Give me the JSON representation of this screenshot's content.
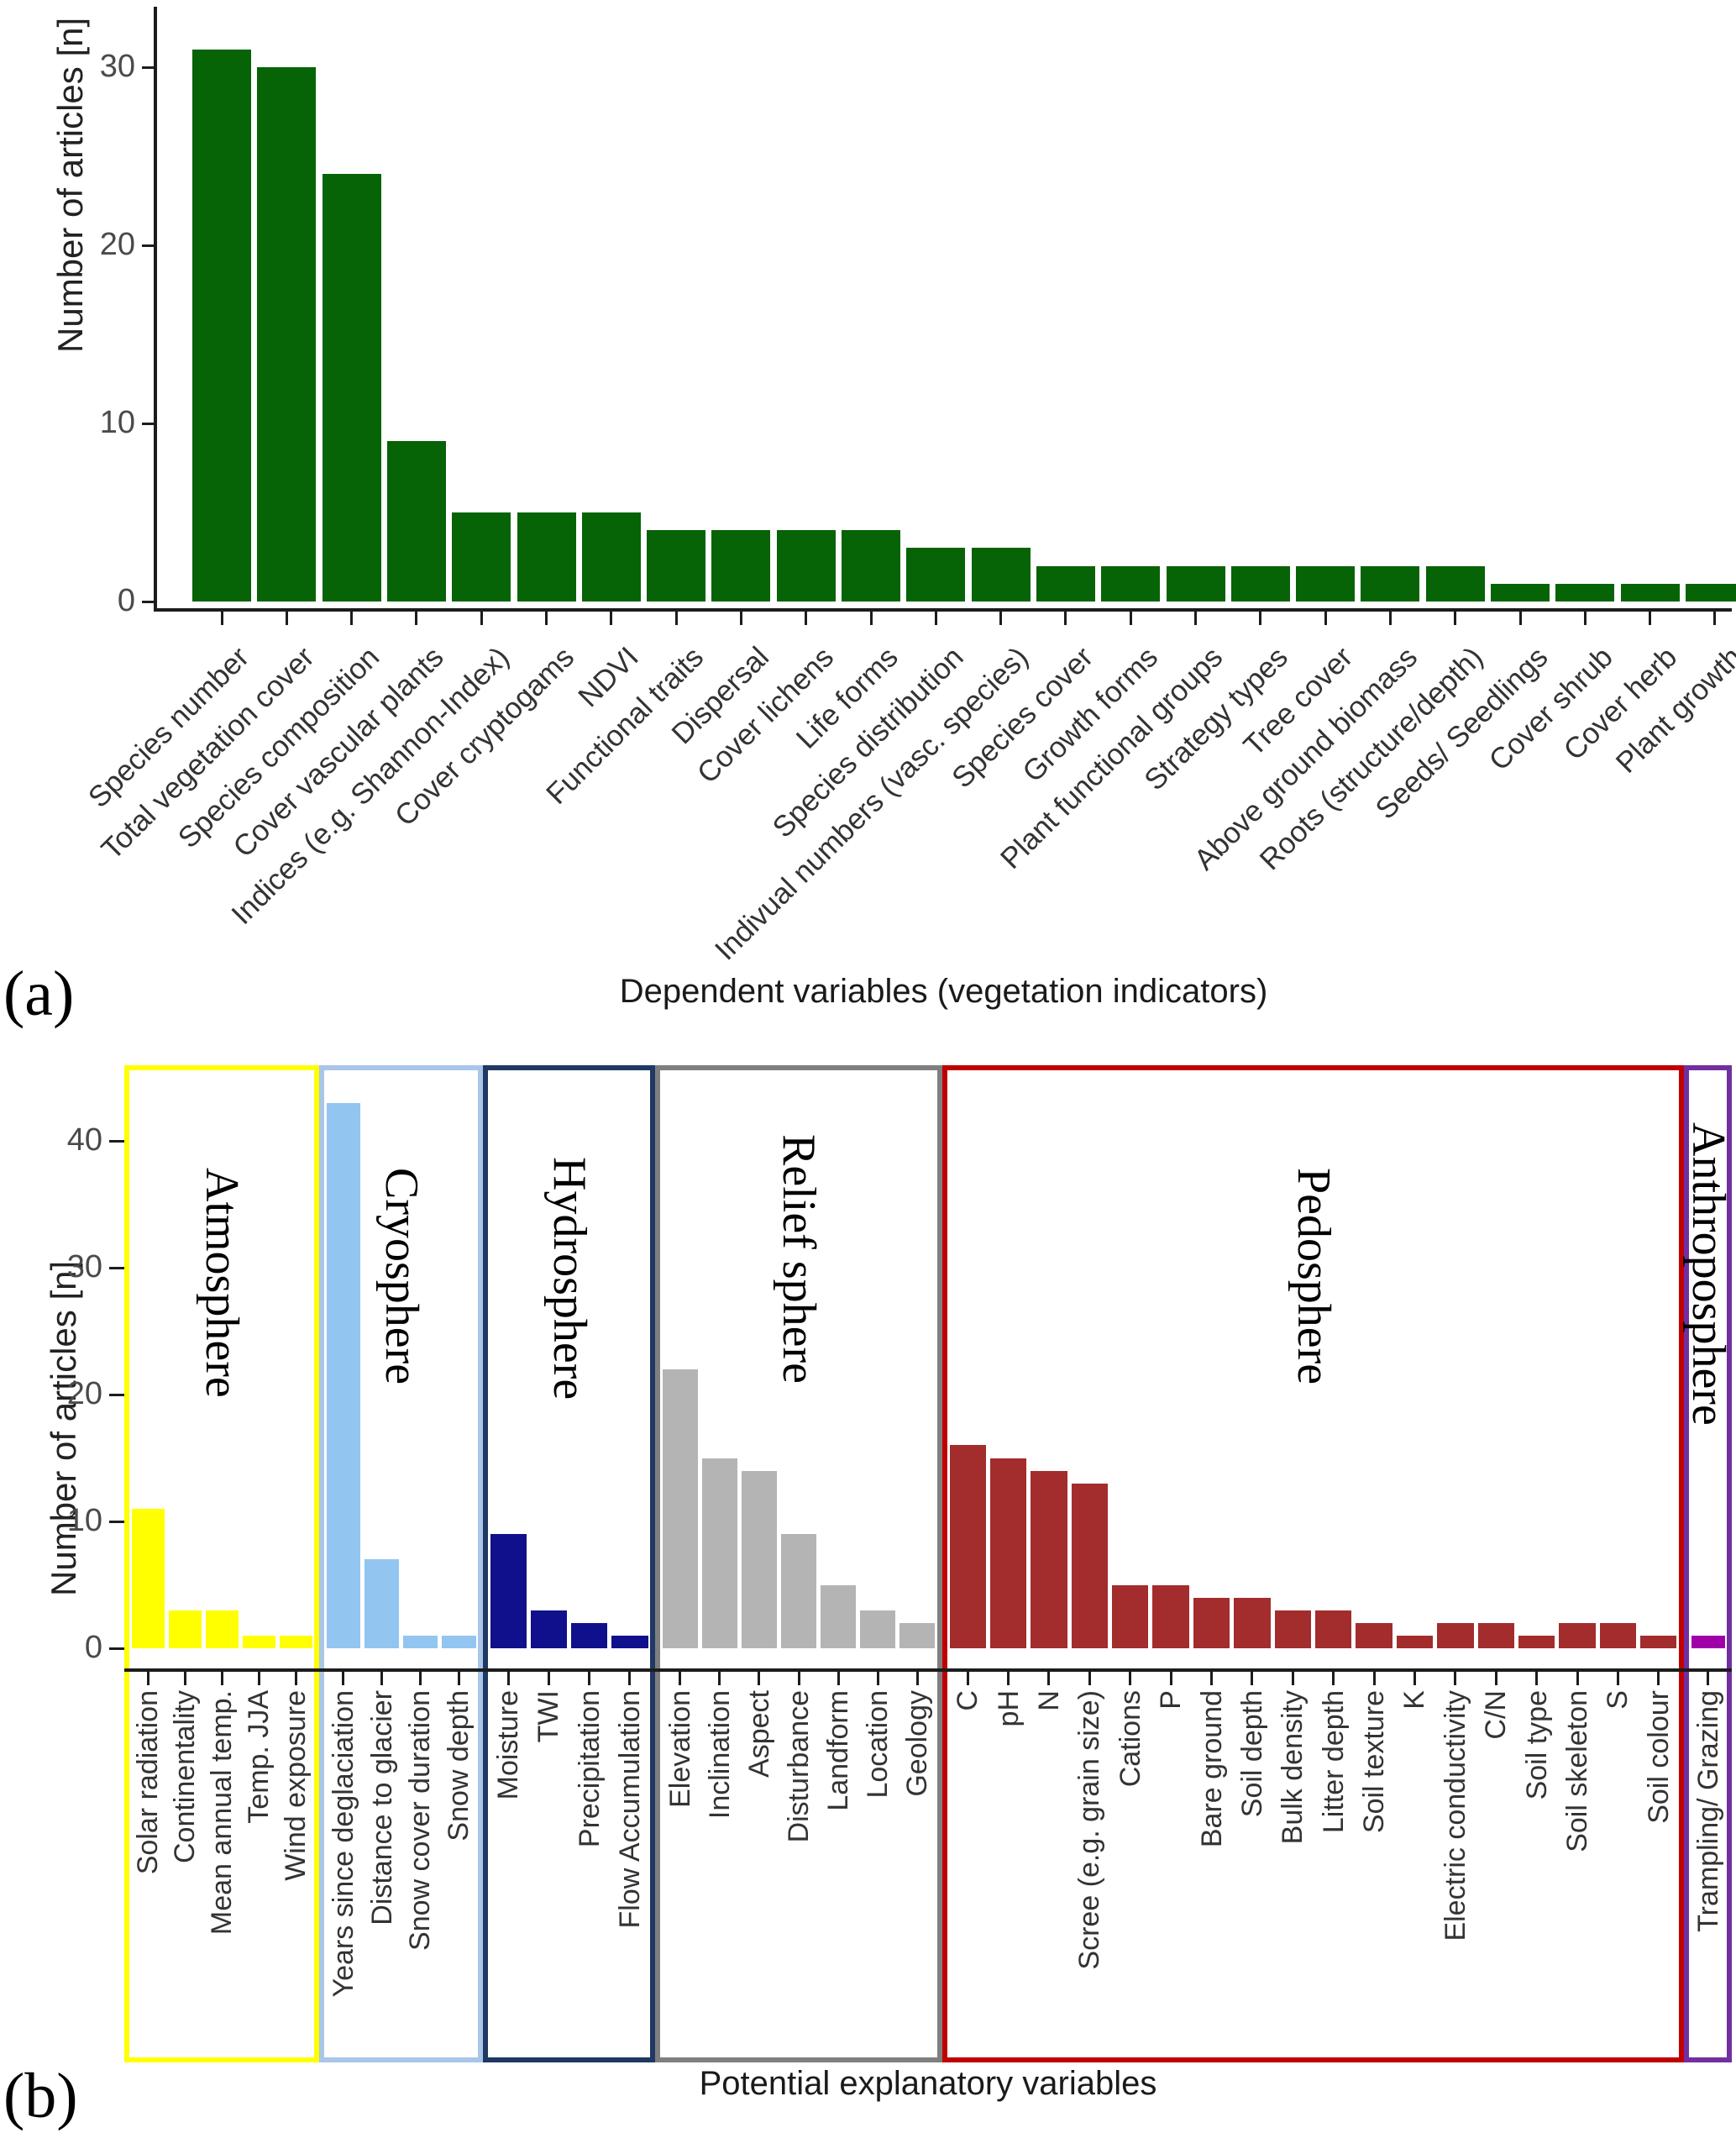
{
  "panel_a": {
    "marker": "(a)",
    "y_axis_label": "Number of articles [n]",
    "y_ticks": [
      0,
      10,
      20,
      30
    ],
    "x_axis_title": "Dependent variables (vegetation indicators)",
    "bar_color": "#066306",
    "bars": [
      {
        "label": "Species number",
        "value": 31
      },
      {
        "label": "Total vegetation cover",
        "value": 30
      },
      {
        "label": "Species composition",
        "value": 24
      },
      {
        "label": "Cover vascular plants",
        "value": 9
      },
      {
        "label": "Indices (e.g. Shannon-Index)",
        "value": 5
      },
      {
        "label": "Cover cryptogams",
        "value": 5
      },
      {
        "label": "NDVI",
        "value": 5
      },
      {
        "label": "Functional traits",
        "value": 4
      },
      {
        "label": "Dispersal",
        "value": 4
      },
      {
        "label": "Cover lichens",
        "value": 4
      },
      {
        "label": "Life forms",
        "value": 4
      },
      {
        "label": "Species distribution",
        "value": 3
      },
      {
        "label": "Indivual numbers (vasc. species)",
        "value": 3
      },
      {
        "label": "Species cover",
        "value": 2
      },
      {
        "label": "Growth forms",
        "value": 2
      },
      {
        "label": "Plant functional groups",
        "value": 2
      },
      {
        "label": "Strategy types",
        "value": 2
      },
      {
        "label": "Tree cover",
        "value": 2
      },
      {
        "label": "Above ground biomass",
        "value": 2
      },
      {
        "label": "Roots (structure/depth)",
        "value": 2
      },
      {
        "label": "Seeds/ Seedlings",
        "value": 1
      },
      {
        "label": "Cover shrub",
        "value": 1
      },
      {
        "label": "Cover herb",
        "value": 1
      },
      {
        "label": "Plant growth",
        "value": 1
      }
    ]
  },
  "panel_b": {
    "marker": "(b)",
    "y_axis_label": "Number of articles [n]",
    "y_ticks": [
      0,
      10,
      20,
      30,
      40
    ],
    "x_axis_title": "Potential explanatory variables",
    "groups": [
      {
        "name": "Atmosphere",
        "bar_color": "#FFFF00",
        "border_color": "#FFFF00",
        "bars": [
          {
            "label": "Solar radiation",
            "value": 11
          },
          {
            "label": "Continentality",
            "value": 3
          },
          {
            "label": "Mean annual temp.",
            "value": 3
          },
          {
            "label": "Temp. JJA",
            "value": 1
          },
          {
            "label": "Wind exposure",
            "value": 1
          }
        ]
      },
      {
        "name": "Cryosphere",
        "bar_color": "#92C5F0",
        "border_color": "#A9C6E8",
        "bars": [
          {
            "label": "Years since deglaciation",
            "value": 43
          },
          {
            "label": "Distance to glacier",
            "value": 7
          },
          {
            "label": "Snow cover duration",
            "value": 1
          },
          {
            "label": "Snow depth",
            "value": 1
          }
        ]
      },
      {
        "name": "Hydrosphere",
        "bar_color": "#10108C",
        "border_color": "#1F3864",
        "bars": [
          {
            "label": "Moisture",
            "value": 9
          },
          {
            "label": "TWI",
            "value": 3
          },
          {
            "label": "Precipitation",
            "value": 2
          },
          {
            "label": "Flow Accumulation",
            "value": 1
          }
        ]
      },
      {
        "name": "Relief sphere",
        "bar_color": "#B4B4B4",
        "border_color": "#7F7F7F",
        "bars": [
          {
            "label": "Elevation",
            "value": 22
          },
          {
            "label": "Inclination",
            "value": 15
          },
          {
            "label": "Aspect",
            "value": 14
          },
          {
            "label": "Disturbance",
            "value": 9
          },
          {
            "label": "Landform",
            "value": 5
          },
          {
            "label": "Location",
            "value": 3
          },
          {
            "label": "Geology",
            "value": 2
          }
        ]
      },
      {
        "name": "Pedosphere",
        "bar_color": "#A32C2C",
        "border_color": "#C00000",
        "bars": [
          {
            "label": "C",
            "value": 16
          },
          {
            "label": "pH",
            "value": 15
          },
          {
            "label": "N",
            "value": 14
          },
          {
            "label": "Scree (e.g. grain size)",
            "value": 13
          },
          {
            "label": "Cations",
            "value": 5
          },
          {
            "label": "P",
            "value": 5
          },
          {
            "label": "Bare ground",
            "value": 4
          },
          {
            "label": "Soil depth",
            "value": 4
          },
          {
            "label": "Bulk density",
            "value": 3
          },
          {
            "label": "Litter depth",
            "value": 3
          },
          {
            "label": "Soil texture",
            "value": 2
          },
          {
            "label": "K",
            "value": 1
          },
          {
            "label": "Electric conductivity",
            "value": 2
          },
          {
            "label": "C/N",
            "value": 2
          },
          {
            "label": "Soil type",
            "value": 1
          },
          {
            "label": "Soil skeleton",
            "value": 2
          },
          {
            "label": "S",
            "value": 2
          },
          {
            "label": "Soil colour",
            "value": 1
          }
        ]
      },
      {
        "name": "Anthroposphere",
        "bar_color": "#A000A8",
        "border_color": "#7030A0",
        "bars": [
          {
            "label": "Trampling/ Grazing",
            "value": 1
          }
        ]
      }
    ]
  },
  "chart_data": [
    {
      "type": "bar",
      "title": "",
      "xlabel": "Dependent variables (vegetation indicators)",
      "ylabel": "Number of articles [n]",
      "ylim": [
        0,
        32
      ],
      "grid": false,
      "legend_position": "none",
      "categories": [
        "Species number",
        "Total vegetation cover",
        "Species composition",
        "Cover vascular plants",
        "Indices (e.g. Shannon-Index)",
        "Cover cryptogams",
        "NDVI",
        "Functional traits",
        "Dispersal",
        "Cover lichens",
        "Life forms",
        "Species distribution",
        "Indivual numbers (vasc. species)",
        "Species cover",
        "Growth forms",
        "Plant functional groups",
        "Strategy types",
        "Tree cover",
        "Above ground biomass",
        "Roots (structure/depth)",
        "Seeds/ Seedlings",
        "Cover shrub",
        "Cover herb",
        "Plant growth"
      ],
      "values": [
        31,
        30,
        24,
        9,
        5,
        5,
        5,
        4,
        4,
        4,
        4,
        3,
        3,
        2,
        2,
        2,
        2,
        2,
        2,
        2,
        1,
        1,
        1,
        1
      ]
    },
    {
      "type": "bar",
      "title": "",
      "xlabel": "Potential explanatory variables",
      "ylabel": "Number of articles [n]",
      "ylim": [
        0,
        46
      ],
      "grid": false,
      "legend_position": "none",
      "series": [
        {
          "name": "Atmosphere",
          "categories": [
            "Solar radiation",
            "Continentality",
            "Mean annual temp.",
            "Temp. JJA",
            "Wind exposure"
          ],
          "values": [
            11,
            3,
            3,
            1,
            1
          ]
        },
        {
          "name": "Cryosphere",
          "categories": [
            "Years since deglaciation",
            "Distance to glacier",
            "Snow cover duration",
            "Snow depth"
          ],
          "values": [
            43,
            7,
            1,
            1
          ]
        },
        {
          "name": "Hydrosphere",
          "categories": [
            "Moisture",
            "TWI",
            "Precipitation",
            "Flow Accumulation"
          ],
          "values": [
            9,
            3,
            2,
            1
          ]
        },
        {
          "name": "Relief sphere",
          "categories": [
            "Elevation",
            "Inclination",
            "Aspect",
            "Disturbance",
            "Landform",
            "Location",
            "Geology"
          ],
          "values": [
            22,
            15,
            14,
            9,
            5,
            3,
            2
          ]
        },
        {
          "name": "Pedosphere",
          "categories": [
            "C",
            "pH",
            "N",
            "Scree (e.g. grain size)",
            "Cations",
            "P",
            "Bare ground",
            "Soil depth",
            "Bulk density",
            "Litter depth",
            "Soil texture",
            "K",
            "Electric conductivity",
            "C/N",
            "Soil type",
            "Soil skeleton",
            "S",
            "Soil colour"
          ],
          "values": [
            16,
            15,
            14,
            13,
            5,
            5,
            4,
            4,
            3,
            3,
            2,
            1,
            2,
            2,
            1,
            2,
            2,
            1
          ]
        },
        {
          "name": "Anthroposphere",
          "categories": [
            "Trampling/ Grazing"
          ],
          "values": [
            1
          ]
        }
      ]
    }
  ]
}
